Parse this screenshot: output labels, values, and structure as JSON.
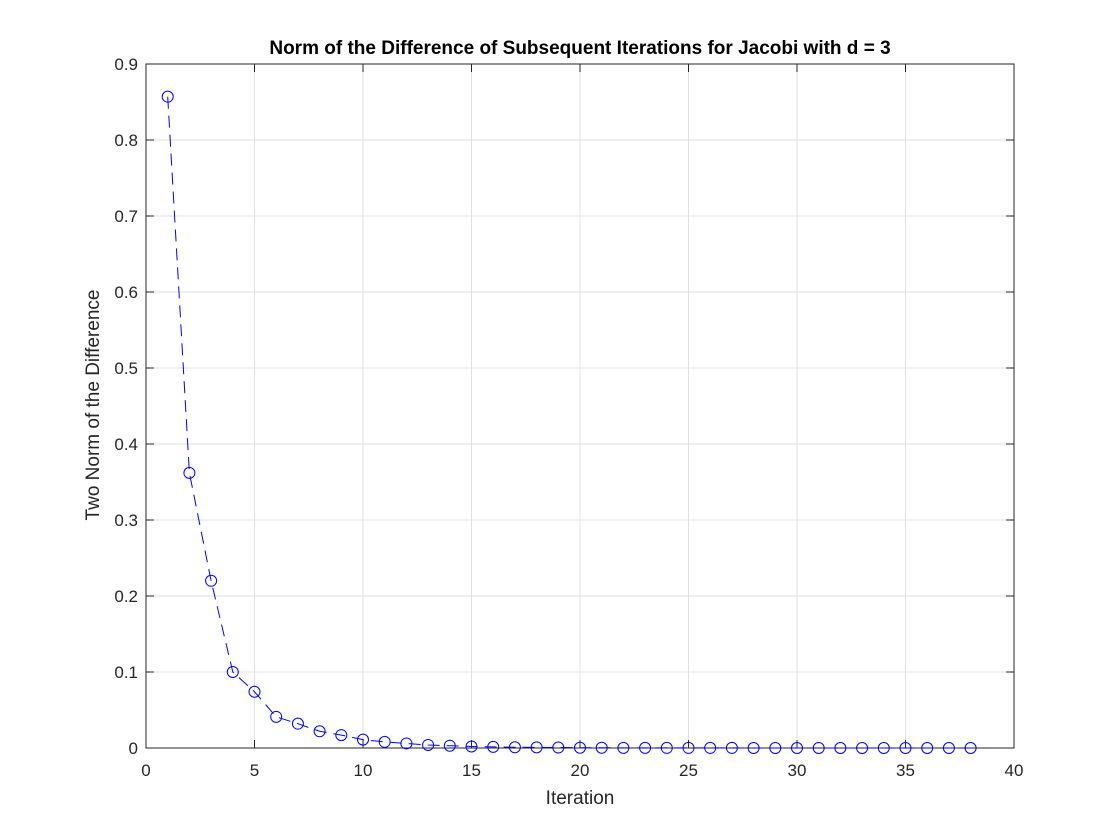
{
  "chart_data": {
    "type": "line",
    "title": "Norm of the Difference of Subsequent Iterations for Jacobi with d = 3",
    "xlabel": "Iteration",
    "ylabel": "Two Norm of the Difference",
    "xlim": [
      0,
      40
    ],
    "ylim": [
      0,
      0.9
    ],
    "xticks": [
      "0",
      "5",
      "10",
      "15",
      "20",
      "25",
      "30",
      "35",
      "40"
    ],
    "yticks": [
      "0",
      "0.1",
      "0.2",
      "0.3",
      "0.4",
      "0.5",
      "0.6",
      "0.7",
      "0.8",
      "0.9"
    ],
    "grid": true,
    "line_style": "dashed",
    "marker": "circle",
    "color": "#0000ff",
    "series": [
      {
        "x": [
          1,
          2,
          3,
          4,
          5,
          6,
          7,
          8,
          9,
          10,
          11,
          12,
          13,
          14,
          15,
          16,
          17,
          18,
          19,
          20,
          21,
          22,
          23,
          24,
          25,
          26,
          27,
          28,
          29,
          30,
          31,
          32,
          33,
          34,
          35,
          36,
          37,
          38
        ],
        "values": [
          0.857,
          0.362,
          0.22,
          0.1,
          0.074,
          0.041,
          0.032,
          0.022,
          0.017,
          0.011,
          0.008,
          0.006,
          0.004,
          0.003,
          0.002,
          0.0015,
          0.001,
          0.0008,
          0.0006,
          0.0004,
          0.0003,
          0.0002,
          0.0002,
          0.0001,
          0.0001,
          0.0001,
          0.0001,
          0.0,
          0.0,
          0.0,
          0.0,
          0.0,
          0.0,
          0.0,
          0.0,
          0.0,
          0.0,
          0.0
        ]
      }
    ]
  },
  "colors": {
    "series": "#0000ff",
    "grid": "#dfdfdf",
    "axis": "#262626"
  }
}
